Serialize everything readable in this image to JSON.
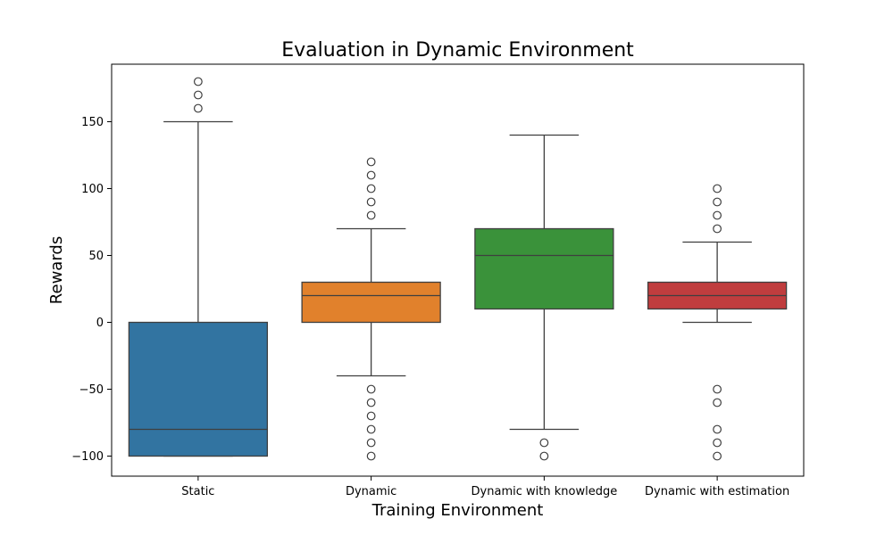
{
  "chart_data": {
    "type": "box",
    "title": "Evaluation in Dynamic Environment",
    "xlabel": "Training Environment",
    "ylabel": "Rewards",
    "ylim": [
      -115,
      193
    ],
    "yticks": [
      -100,
      -50,
      0,
      50,
      100,
      150
    ],
    "ytick_labels": [
      "−100",
      "−50",
      "0",
      "50",
      "100",
      "150"
    ],
    "categories": [
      "Static",
      "Dynamic",
      "Dynamic with knowledge",
      "Dynamic with estimation"
    ],
    "boxes": [
      {
        "name": "Static",
        "color": "#3274a1",
        "q1": -100,
        "median": -80,
        "q3": 0,
        "whisker_low": -100,
        "whisker_high": 150,
        "outliers": [
          160,
          170,
          180
        ]
      },
      {
        "name": "Dynamic",
        "color": "#e1812c",
        "q1": 0,
        "median": 20,
        "q3": 30,
        "whisker_low": -40,
        "whisker_high": 70,
        "outliers": [
          80,
          90,
          100,
          110,
          120,
          -50,
          -60,
          -70,
          -80,
          -90,
          -100
        ]
      },
      {
        "name": "Dynamic with knowledge",
        "color": "#3a923a",
        "q1": 10,
        "median": 50,
        "q3": 70,
        "whisker_low": -80,
        "whisker_high": 140,
        "outliers": [
          -90,
          -100
        ]
      },
      {
        "name": "Dynamic with estimation",
        "color": "#c03d3e",
        "q1": 10,
        "median": 20,
        "q3": 30,
        "whisker_low": 0,
        "whisker_high": 60,
        "outliers": [
          70,
          80,
          90,
          100,
          -50,
          -60,
          -80,
          -90,
          -100
        ]
      }
    ],
    "grid": false,
    "legend": false
  }
}
